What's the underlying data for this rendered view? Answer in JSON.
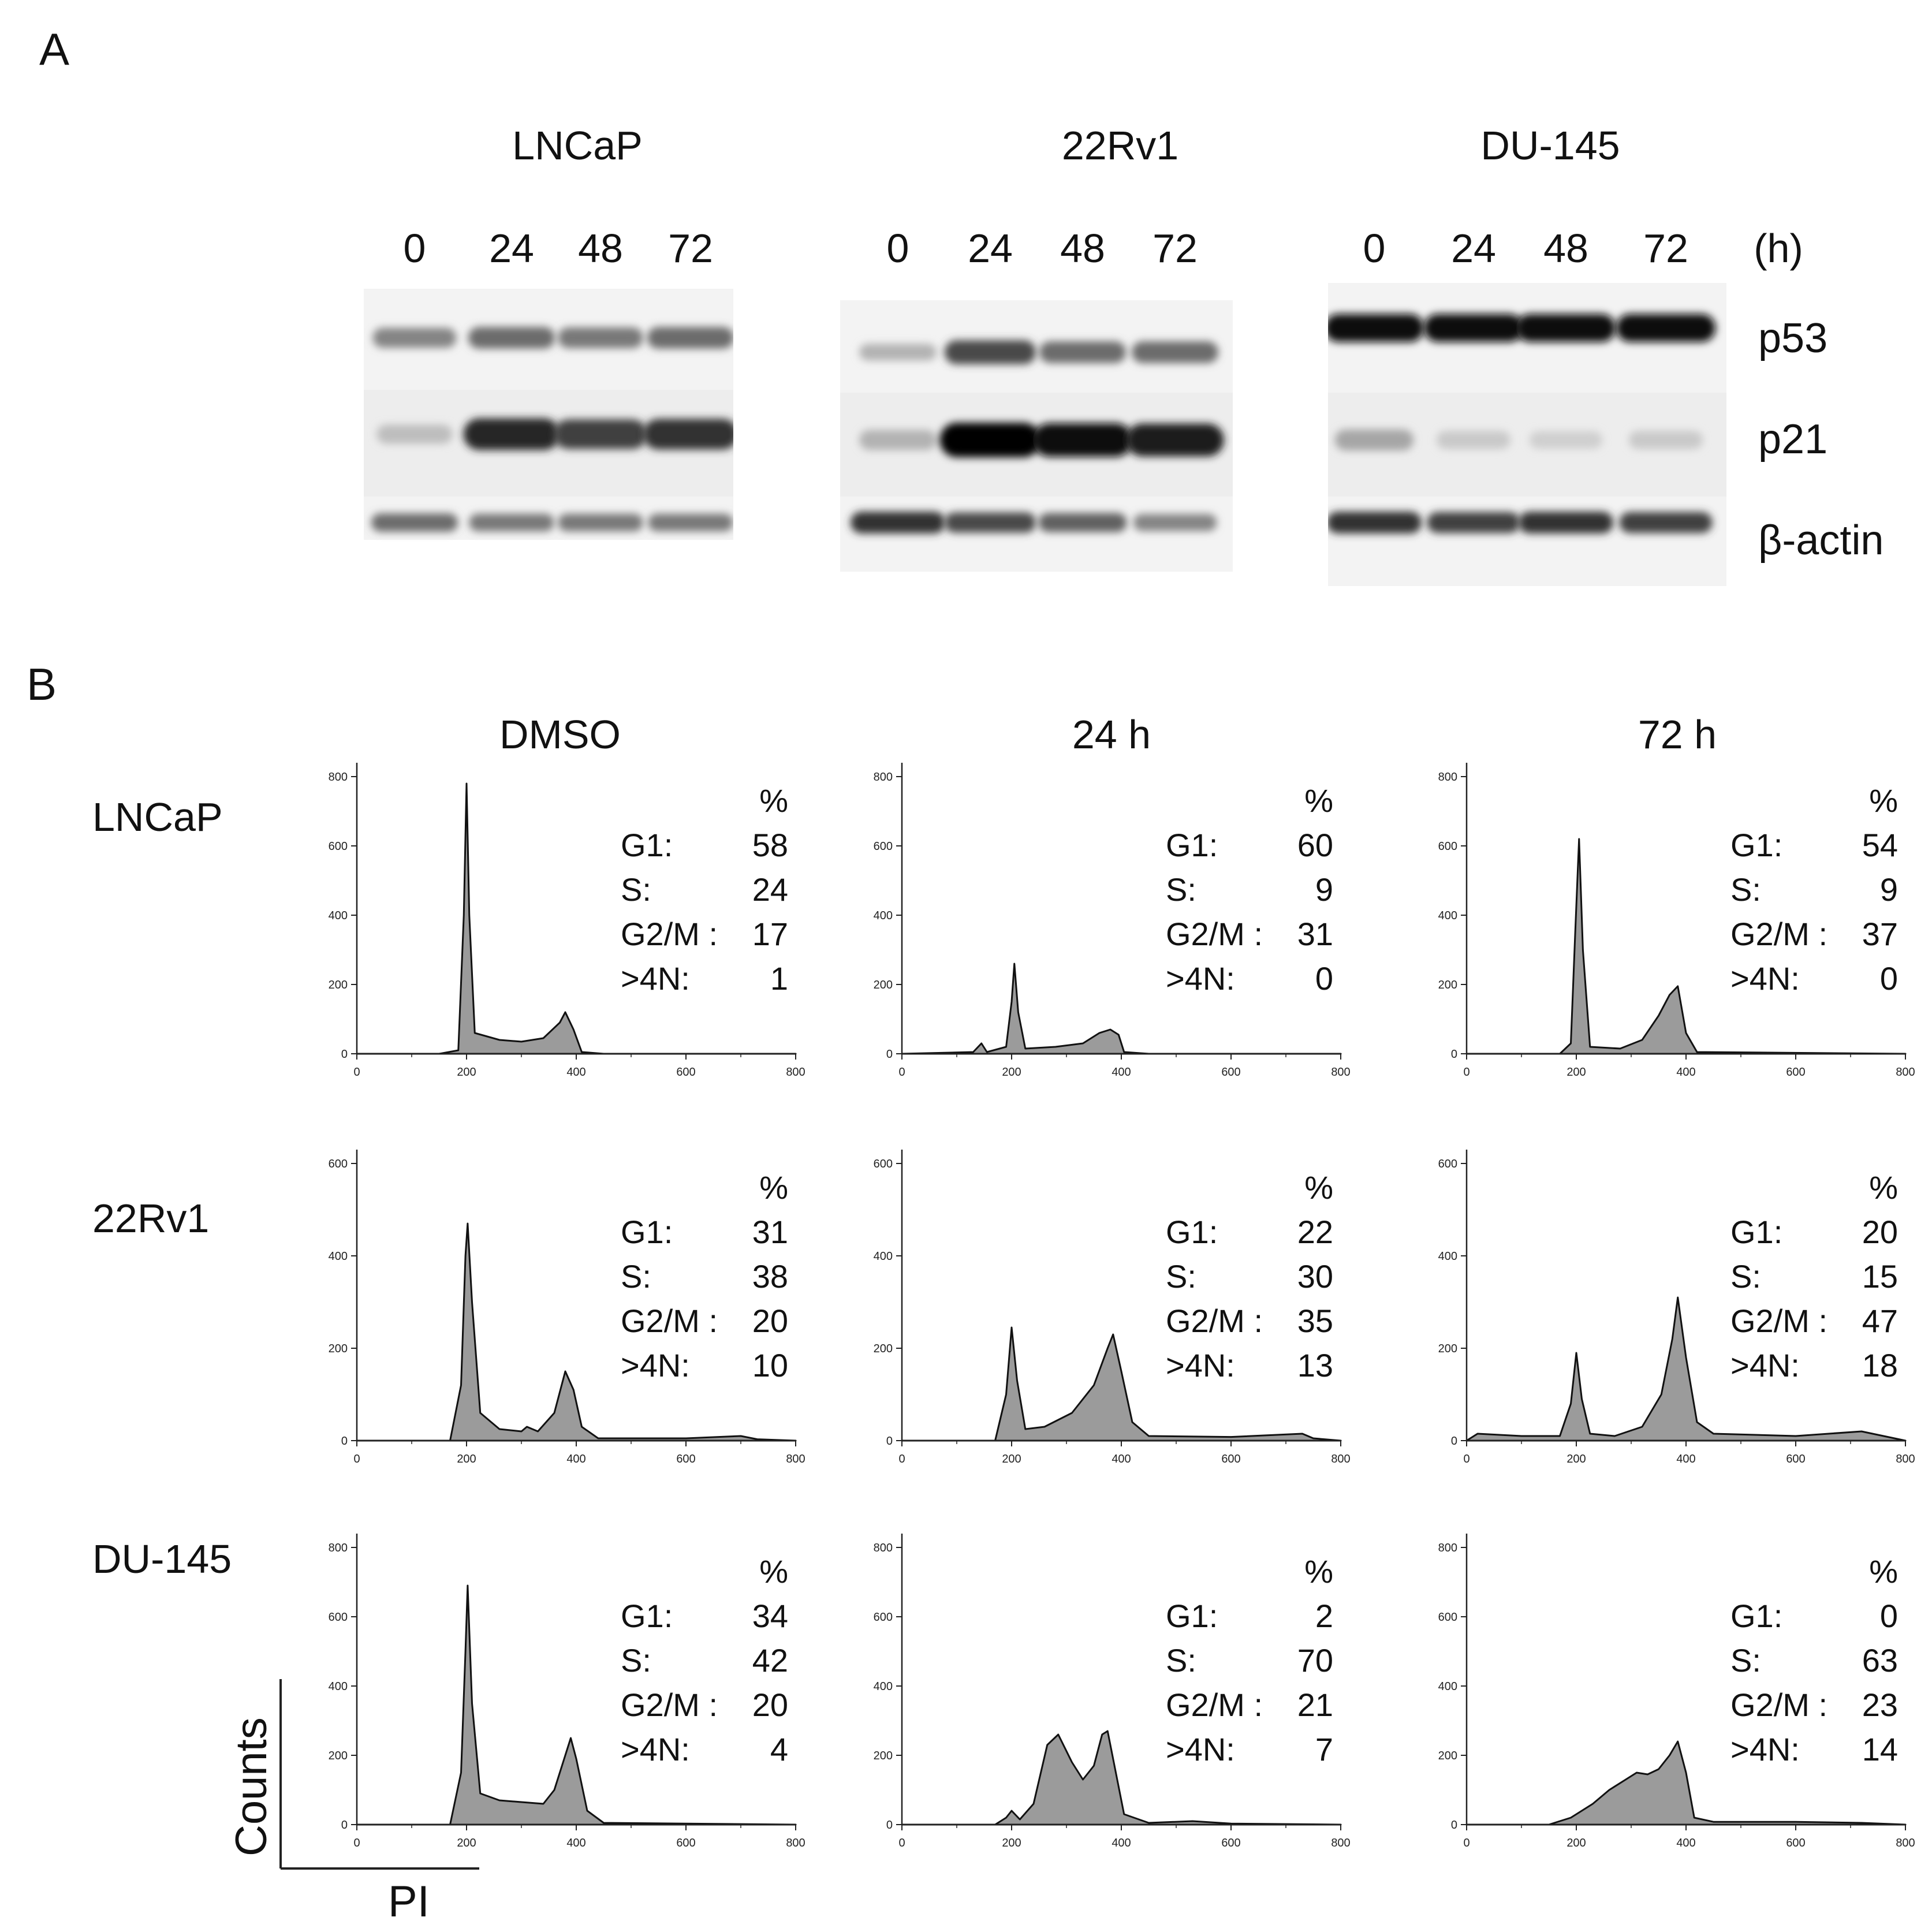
{
  "panelA": {
    "letter": "A",
    "unit_label": "(h)",
    "time_points": [
      "0",
      "24",
      "48",
      "72"
    ],
    "proteins": [
      "p53",
      "p21",
      "β-actin"
    ],
    "cell_lines": [
      {
        "name": "LNCaP",
        "bands": {
          "p53": [
            0.45,
            0.55,
            0.5,
            0.55
          ],
          "p21": [
            0.2,
            0.85,
            0.75,
            0.8
          ],
          "actin": [
            0.55,
            0.5,
            0.5,
            0.5
          ]
        }
      },
      {
        "name": "22Rv1",
        "bands": {
          "p53": [
            0.25,
            0.7,
            0.55,
            0.55
          ],
          "p21": [
            0.25,
            1.0,
            0.95,
            0.9
          ],
          "actin": [
            0.8,
            0.7,
            0.6,
            0.45
          ]
        }
      },
      {
        "name": "DU-145",
        "bands": {
          "p53": [
            0.95,
            0.95,
            0.95,
            0.95
          ],
          "p21": [
            0.3,
            0.15,
            0.12,
            0.15
          ],
          "actin": [
            0.8,
            0.75,
            0.8,
            0.75
          ]
        }
      }
    ]
  },
  "panelB": {
    "letter": "B",
    "col_titles": [
      "DMSO",
      "24 h",
      "72 h"
    ],
    "row_labels": [
      "LNCaP",
      "22Rv1",
      "DU-145"
    ],
    "stat_header": "%",
    "stat_names": [
      "G1:",
      "S:",
      "G2/M  :",
      ">4N:"
    ],
    "axis_labels": {
      "y": "Counts",
      "x": "PI"
    },
    "x_ticks": [
      0,
      200,
      400,
      600,
      800
    ],
    "chart_data": [
      {
        "type": "area",
        "row": "LNCaP",
        "col": "DMSO",
        "ylim": [
          0,
          800
        ],
        "y_ticks": [
          0,
          200,
          400,
          600,
          800
        ],
        "profile": [
          [
            0,
            0
          ],
          [
            150,
            0
          ],
          [
            185,
            10
          ],
          [
            195,
            400
          ],
          [
            200,
            780
          ],
          [
            205,
            400
          ],
          [
            215,
            60
          ],
          [
            260,
            40
          ],
          [
            300,
            35
          ],
          [
            340,
            45
          ],
          [
            370,
            90
          ],
          [
            380,
            120
          ],
          [
            395,
            70
          ],
          [
            410,
            5
          ],
          [
            450,
            0
          ],
          [
            800,
            0
          ]
        ],
        "stats": {
          "G1": 58,
          "S": 24,
          "G2/M": 17,
          ">4N": 1
        }
      },
      {
        "type": "area",
        "row": "LNCaP",
        "col": "24 h",
        "ylim": [
          0,
          800
        ],
        "y_ticks": [
          0,
          200,
          400,
          600,
          800
        ],
        "profile": [
          [
            0,
            0
          ],
          [
            130,
            5
          ],
          [
            145,
            30
          ],
          [
            155,
            5
          ],
          [
            190,
            20
          ],
          [
            200,
            150
          ],
          [
            205,
            260
          ],
          [
            212,
            120
          ],
          [
            225,
            15
          ],
          [
            280,
            20
          ],
          [
            330,
            30
          ],
          [
            360,
            60
          ],
          [
            380,
            70
          ],
          [
            395,
            55
          ],
          [
            405,
            5
          ],
          [
            450,
            0
          ],
          [
            800,
            0
          ]
        ],
        "stats": {
          "G1": 60,
          "S": 9,
          "G2/M": 31,
          ">4N": 0
        }
      },
      {
        "type": "area",
        "row": "LNCaP",
        "col": "72 h",
        "ylim": [
          0,
          800
        ],
        "y_ticks": [
          0,
          200,
          400,
          600,
          800
        ],
        "profile": [
          [
            0,
            0
          ],
          [
            170,
            0
          ],
          [
            190,
            30
          ],
          [
            198,
            350
          ],
          [
            205,
            620
          ],
          [
            212,
            300
          ],
          [
            225,
            20
          ],
          [
            280,
            15
          ],
          [
            320,
            40
          ],
          [
            350,
            110
          ],
          [
            370,
            170
          ],
          [
            385,
            195
          ],
          [
            400,
            60
          ],
          [
            420,
            5
          ],
          [
            800,
            0
          ]
        ],
        "stats": {
          "G1": 54,
          "S": 9,
          "G2/M": 37,
          ">4N": 0
        }
      },
      {
        "type": "area",
        "row": "22Rv1",
        "col": "DMSO",
        "ylim": [
          0,
          600
        ],
        "y_ticks": [
          0,
          200,
          400,
          600
        ],
        "profile": [
          [
            0,
            0
          ],
          [
            170,
            0
          ],
          [
            190,
            120
          ],
          [
            198,
            400
          ],
          [
            202,
            470
          ],
          [
            210,
            300
          ],
          [
            225,
            60
          ],
          [
            260,
            25
          ],
          [
            300,
            20
          ],
          [
            310,
            30
          ],
          [
            330,
            20
          ],
          [
            360,
            60
          ],
          [
            380,
            150
          ],
          [
            395,
            110
          ],
          [
            410,
            30
          ],
          [
            440,
            5
          ],
          [
            600,
            5
          ],
          [
            700,
            10
          ],
          [
            730,
            3
          ],
          [
            800,
            0
          ]
        ],
        "stats": {
          "G1": 31,
          "S": 38,
          "G2/M": 20,
          ">4N": 10
        }
      },
      {
        "type": "area",
        "row": "22Rv1",
        "col": "24 h",
        "ylim": [
          0,
          600
        ],
        "y_ticks": [
          0,
          200,
          400,
          600
        ],
        "profile": [
          [
            0,
            0
          ],
          [
            170,
            0
          ],
          [
            190,
            100
          ],
          [
            200,
            245
          ],
          [
            210,
            130
          ],
          [
            225,
            25
          ],
          [
            260,
            30
          ],
          [
            310,
            60
          ],
          [
            350,
            120
          ],
          [
            375,
            200
          ],
          [
            385,
            230
          ],
          [
            400,
            150
          ],
          [
            420,
            40
          ],
          [
            450,
            10
          ],
          [
            600,
            8
          ],
          [
            730,
            15
          ],
          [
            750,
            5
          ],
          [
            800,
            0
          ]
        ],
        "stats": {
          "G1": 22,
          "S": 30,
          "G2/M": 35,
          ">4N": 13
        }
      },
      {
        "type": "area",
        "row": "22Rv1",
        "col": "72 h",
        "ylim": [
          0,
          600
        ],
        "y_ticks": [
          0,
          200,
          400,
          600
        ],
        "profile": [
          [
            0,
            0
          ],
          [
            20,
            15
          ],
          [
            100,
            10
          ],
          [
            170,
            10
          ],
          [
            190,
            80
          ],
          [
            200,
            190
          ],
          [
            210,
            90
          ],
          [
            225,
            15
          ],
          [
            270,
            10
          ],
          [
            320,
            30
          ],
          [
            355,
            100
          ],
          [
            375,
            220
          ],
          [
            385,
            310
          ],
          [
            400,
            180
          ],
          [
            420,
            40
          ],
          [
            450,
            15
          ],
          [
            600,
            10
          ],
          [
            720,
            20
          ],
          [
            760,
            10
          ],
          [
            800,
            0
          ]
        ],
        "stats": {
          "G1": 20,
          "S": 15,
          "G2/M": 47,
          ">4N": 18
        }
      },
      {
        "type": "area",
        "row": "DU-145",
        "col": "DMSO",
        "ylim": [
          0,
          800
        ],
        "y_ticks": [
          0,
          200,
          400,
          600,
          800
        ],
        "profile": [
          [
            0,
            0
          ],
          [
            170,
            0
          ],
          [
            190,
            150
          ],
          [
            198,
            500
          ],
          [
            202,
            690
          ],
          [
            210,
            350
          ],
          [
            225,
            90
          ],
          [
            260,
            70
          ],
          [
            300,
            65
          ],
          [
            340,
            60
          ],
          [
            360,
            100
          ],
          [
            380,
            200
          ],
          [
            390,
            250
          ],
          [
            400,
            190
          ],
          [
            420,
            40
          ],
          [
            450,
            5
          ],
          [
            800,
            0
          ]
        ],
        "stats": {
          "G1": 34,
          "S": 42,
          "G2/M": 20,
          ">4N": 4
        }
      },
      {
        "type": "area",
        "row": "DU-145",
        "col": "24 h",
        "ylim": [
          0,
          800
        ],
        "y_ticks": [
          0,
          200,
          400,
          600,
          800
        ],
        "profile": [
          [
            0,
            0
          ],
          [
            170,
            0
          ],
          [
            190,
            20
          ],
          [
            200,
            40
          ],
          [
            215,
            15
          ],
          [
            240,
            60
          ],
          [
            265,
            230
          ],
          [
            285,
            260
          ],
          [
            310,
            180
          ],
          [
            330,
            130
          ],
          [
            350,
            170
          ],
          [
            365,
            260
          ],
          [
            375,
            270
          ],
          [
            390,
            150
          ],
          [
            405,
            30
          ],
          [
            450,
            5
          ],
          [
            530,
            10
          ],
          [
            600,
            3
          ],
          [
            800,
            0
          ]
        ],
        "stats": {
          "G1": 2,
          "S": 70,
          "G2/M": 21,
          ">4N": 7
        }
      },
      {
        "type": "area",
        "row": "DU-145",
        "col": "72 h",
        "ylim": [
          0,
          800
        ],
        "y_ticks": [
          0,
          200,
          400,
          600,
          800
        ],
        "profile": [
          [
            0,
            0
          ],
          [
            150,
            0
          ],
          [
            190,
            20
          ],
          [
            230,
            60
          ],
          [
            260,
            100
          ],
          [
            290,
            130
          ],
          [
            310,
            150
          ],
          [
            330,
            145
          ],
          [
            350,
            160
          ],
          [
            370,
            200
          ],
          [
            385,
            240
          ],
          [
            400,
            150
          ],
          [
            415,
            20
          ],
          [
            450,
            8
          ],
          [
            600,
            8
          ],
          [
            720,
            5
          ],
          [
            800,
            0
          ]
        ],
        "stats": {
          "G1": 0,
          "S": 63,
          "G2/M": 23,
          ">4N": 14
        }
      }
    ]
  }
}
